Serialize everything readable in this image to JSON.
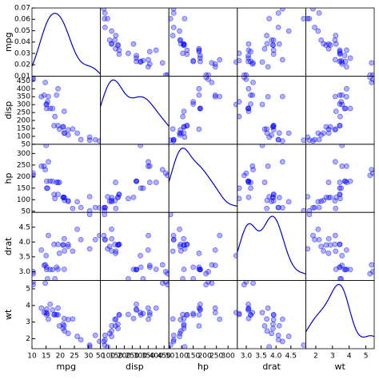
{
  "chart_data": {
    "type": "scatter",
    "color": "#0000ff",
    "line_color": "#0000cc",
    "density_ylim": [
      0.01,
      0.07
    ],
    "density_yticks": [
      0.01,
      0.02,
      0.03,
      0.04,
      0.05,
      0.06,
      0.07
    ],
    "variables": [
      {
        "name": "mpg",
        "lim": [
          10,
          34.2
        ],
        "ticks": [
          10,
          15,
          20,
          25,
          30
        ],
        "values": [
          21,
          21,
          22.8,
          21.4,
          18.7,
          18.1,
          14.3,
          24.4,
          22.8,
          19.2,
          17.8,
          16.4,
          17.3,
          15.2,
          10.4,
          10.4,
          14.7,
          32.4,
          30.4,
          33.9,
          21.5,
          15.5,
          15.2,
          13.3,
          19.2,
          27.3,
          26,
          30.4,
          15.8,
          19.7,
          15,
          21.4
        ]
      },
      {
        "name": "disp",
        "lim": [
          50,
          480
        ],
        "ticks": [
          50,
          100,
          150,
          200,
          250,
          300,
          350,
          400,
          450
        ],
        "values": [
          160,
          160,
          108,
          258,
          360,
          225,
          360,
          146.7,
          140.8,
          167.6,
          167.6,
          275.8,
          275.8,
          275.8,
          472,
          460,
          440,
          78.7,
          75.7,
          71.1,
          120.1,
          318,
          304,
          350,
          400,
          79,
          120.3,
          95.1,
          351,
          145,
          301,
          121
        ]
      },
      {
        "name": "hp",
        "lim": [
          45,
          340
        ],
        "ticks": [
          50,
          100,
          150,
          200,
          250,
          300
        ],
        "values": [
          110,
          110,
          93,
          110,
          175,
          105,
          245,
          62,
          95,
          123,
          123,
          180,
          180,
          180,
          205,
          215,
          230,
          66,
          52,
          65,
          97,
          150,
          150,
          245,
          175,
          66,
          91,
          113,
          264,
          175,
          335,
          109
        ]
      },
      {
        "name": "drat",
        "lim": [
          2.7,
          5.0
        ],
        "ticks": [
          {
            "value": 3,
            "label": "3.0"
          },
          {
            "value": 3.5,
            "label": "3.5"
          },
          {
            "value": 4,
            "label": "4.0"
          },
          {
            "value": 4.5,
            "label": "4.5"
          }
        ],
        "values": [
          3.9,
          3.9,
          3.85,
          3.08,
          3.15,
          2.76,
          3.21,
          3.69,
          3.92,
          3.92,
          3.92,
          3.07,
          3.07,
          3.07,
          2.93,
          3,
          3.23,
          4.08,
          4.93,
          4.22,
          3.7,
          2.76,
          3.15,
          3.73,
          3.08,
          4.08,
          4.43,
          3.77,
          4.22,
          3.62,
          3.54,
          4.11
        ]
      },
      {
        "name": "wt",
        "lim": [
          1.4,
          5.5
        ],
        "ticks": [
          2,
          3,
          4,
          5
        ],
        "values": [
          2.62,
          2.875,
          2.32,
          3.215,
          3.44,
          3.46,
          3.57,
          3.19,
          3.15,
          3.44,
          3.44,
          4.07,
          3.73,
          3.78,
          5.25,
          5.424,
          5.345,
          2.2,
          1.615,
          1.835,
          2.465,
          3.52,
          3.435,
          3.84,
          3.845,
          1.935,
          2.14,
          1.513,
          3.17,
          2.77,
          3.57,
          2.78
        ]
      }
    ]
  }
}
